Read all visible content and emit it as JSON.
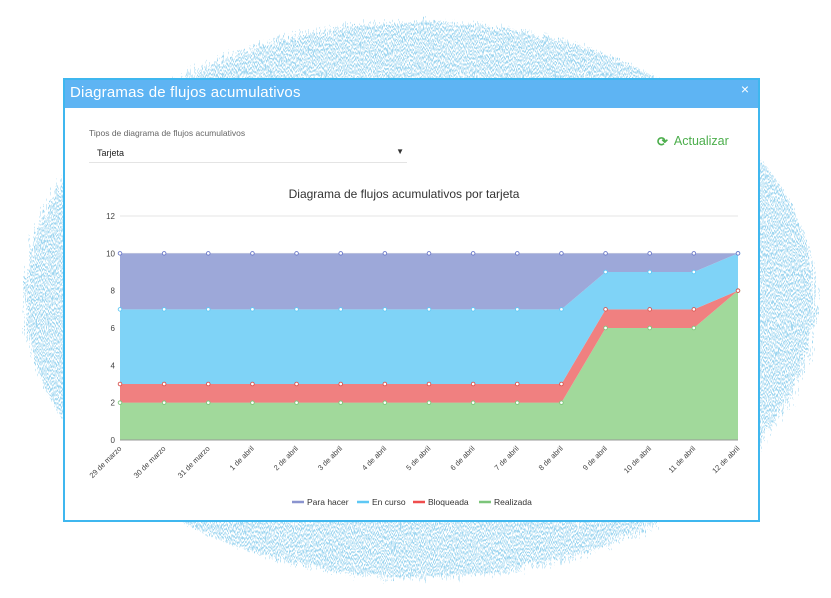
{
  "dialog": {
    "title": "Diagramas de flujos acumulativos",
    "close_label": "×",
    "selector": {
      "label": "Tipos de diagrama de flujos acumulativos",
      "value": "Tarjeta",
      "caret": "▼"
    },
    "refresh": {
      "icon": "refresh-icon",
      "label": "Actualizar"
    }
  },
  "colors": {
    "titlebar": "#5eb4f3",
    "border": "#3fb7ef",
    "refresh": "#4cae4c",
    "backdrop": "#9fd6f0"
  },
  "chart_data": {
    "type": "area",
    "stacked": true,
    "title": "Diagrama de flujos acumulativos por tarjeta",
    "xlabel": "",
    "ylabel": "",
    "ylim": [
      0,
      12
    ],
    "yticks": [
      0,
      2,
      4,
      6,
      8,
      10,
      12
    ],
    "grid": true,
    "legend_position": "bottom",
    "categories": [
      "29 de marzo",
      "30 de marzo",
      "31 de marzo",
      "1 de abril",
      "2 de abril",
      "3 de abril",
      "4 de abril",
      "5 de abril",
      "6 de abril",
      "7 de abril",
      "8 de abril",
      "9 de abril",
      "10 de abril",
      "11 de abril",
      "12 de abril"
    ],
    "series": [
      {
        "name": "Realizada",
        "color": "#a1d99b",
        "values": [
          2,
          2,
          2,
          2,
          2,
          2,
          2,
          2,
          2,
          2,
          2,
          6,
          6,
          6,
          8
        ]
      },
      {
        "name": "Bloqueada",
        "color": "#f08080",
        "values": [
          1,
          1,
          1,
          1,
          1,
          1,
          1,
          1,
          1,
          1,
          1,
          1,
          1,
          1,
          0
        ]
      },
      {
        "name": "En curso",
        "color": "#7fd3f7",
        "values": [
          4,
          4,
          4,
          4,
          4,
          4,
          4,
          4,
          4,
          4,
          4,
          2,
          2,
          2,
          2
        ]
      },
      {
        "name": "Para hacer",
        "color": "#9da8d9",
        "values": [
          3,
          3,
          3,
          3,
          3,
          3,
          3,
          3,
          3,
          3,
          3,
          1,
          1,
          1,
          0
        ]
      }
    ],
    "legend_order": [
      "Para hacer",
      "En curso",
      "Bloqueada",
      "Realizada"
    ],
    "legend_colors": {
      "Para hacer": "#8a94cf",
      "En curso": "#5ec8f5",
      "Bloqueada": "#ef4d4d",
      "Realizada": "#7cc57a"
    },
    "marker_colors": {
      "Realizada": "#7cc57a",
      "Bloqueada": "#d9534f",
      "En curso": "#5ec8f5",
      "Para hacer": "#6a78c8"
    }
  }
}
